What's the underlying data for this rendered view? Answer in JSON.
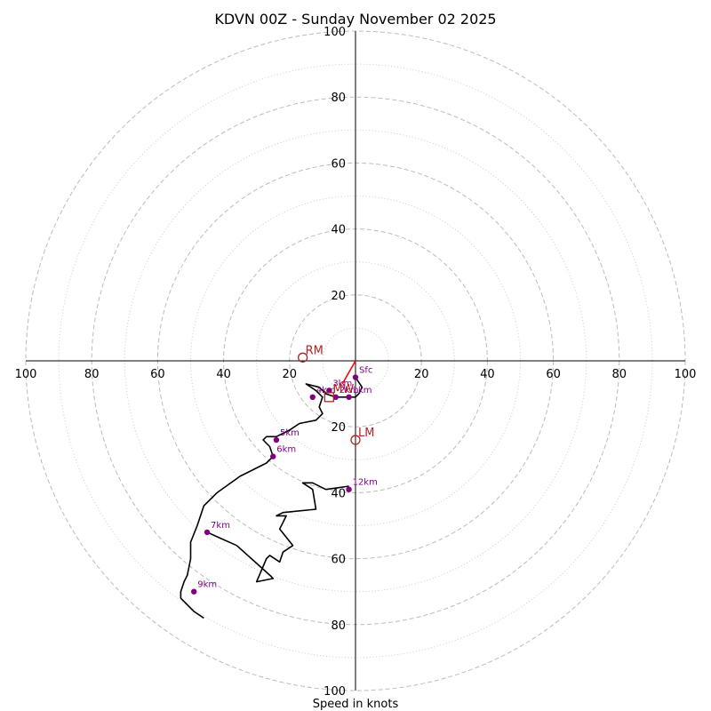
{
  "chart_data": {
    "type": "hodograph",
    "title": "KDVN 00Z - Sunday November 02 2025",
    "xlabel": "Speed in knots",
    "units": "knots",
    "range": [
      -100,
      100
    ],
    "ring_major": [
      20,
      40,
      60,
      80,
      100
    ],
    "ring_minor": [
      10,
      30,
      50,
      70,
      90
    ],
    "tick_values": [
      20,
      40,
      60,
      80,
      100
    ],
    "tick_labels": [
      "20",
      "40",
      "60",
      "80",
      "100"
    ],
    "origin_tick_label": "100",
    "colors": {
      "trace": "#000000",
      "height_marker": "#800080",
      "storm_motion": "#b22222",
      "shear_vector": "#ff0000",
      "ring": "#bbbbbb"
    },
    "trace": [
      [
        0,
        -5
      ],
      [
        2,
        -8
      ],
      [
        1,
        -10
      ],
      [
        0,
        -11
      ],
      [
        -2,
        -11
      ],
      [
        -6,
        -11
      ],
      [
        -9,
        -10
      ],
      [
        -11,
        -8
      ],
      [
        -15,
        -7
      ],
      [
        -12,
        -9
      ],
      [
        -10,
        -11
      ],
      [
        -11,
        -14
      ],
      [
        -10,
        -16
      ],
      [
        -12,
        -18
      ],
      [
        -17,
        -19
      ],
      [
        -20,
        -21
      ],
      [
        -24,
        -23
      ],
      [
        -27,
        -23
      ],
      [
        -28,
        -24
      ],
      [
        -26,
        -26
      ],
      [
        -25,
        -29
      ],
      [
        -27,
        -31
      ],
      [
        -35,
        -35
      ],
      [
        -42,
        -40
      ],
      [
        -46,
        -44
      ],
      [
        -48,
        -50
      ],
      [
        -50,
        -55
      ],
      [
        -50,
        -60
      ],
      [
        -51,
        -65
      ],
      [
        -52,
        -67
      ],
      [
        -53,
        -70
      ],
      [
        -53,
        -72
      ],
      [
        -49,
        -76
      ],
      [
        -46,
        -78
      ]
    ],
    "trace_upper": [
      [
        -45,
        -52
      ],
      [
        -36,
        -56
      ],
      [
        -26,
        -65
      ],
      [
        -25,
        -66
      ],
      [
        -30,
        -67
      ],
      [
        -27,
        -60
      ],
      [
        -26,
        -59
      ],
      [
        -23,
        -61
      ],
      [
        -22,
        -58
      ],
      [
        -19,
        -56
      ],
      [
        -23,
        -51
      ],
      [
        -22,
        -49
      ],
      [
        -21,
        -47
      ],
      [
        -24,
        -47
      ],
      [
        -22,
        -46
      ],
      [
        -12,
        -45
      ],
      [
        -13,
        -39
      ],
      [
        -16,
        -37
      ],
      [
        -13,
        -37
      ],
      [
        -9,
        -39
      ],
      [
        -2,
        -38
      ]
    ],
    "height_markers": [
      {
        "label": "Sfc",
        "u": 0,
        "v": -5
      },
      {
        "label": "1km",
        "u": -2,
        "v": -11
      },
      {
        "label": "2km",
        "u": -6,
        "v": -11
      },
      {
        "label": "3km",
        "u": -8,
        "v": -9
      },
      {
        "label": "4km",
        "u": -13,
        "v": -11
      },
      {
        "label": "5km",
        "u": -24,
        "v": -24
      },
      {
        "label": "6km",
        "u": -25,
        "v": -29
      },
      {
        "label": "7km",
        "u": -45,
        "v": -52
      },
      {
        "label": "9km",
        "u": -49,
        "v": -70
      },
      {
        "label": "12km",
        "u": -2,
        "v": -39
      }
    ],
    "storm_motion": [
      {
        "label": "RM",
        "u": -16,
        "v": 1
      },
      {
        "label": "LM",
        "u": 0,
        "v": -24
      },
      {
        "label": "MW",
        "u": -8,
        "v": -11
      }
    ],
    "shear_vector": {
      "from": [
        0,
        0
      ],
      "to": [
        -4,
        -7
      ]
    }
  }
}
